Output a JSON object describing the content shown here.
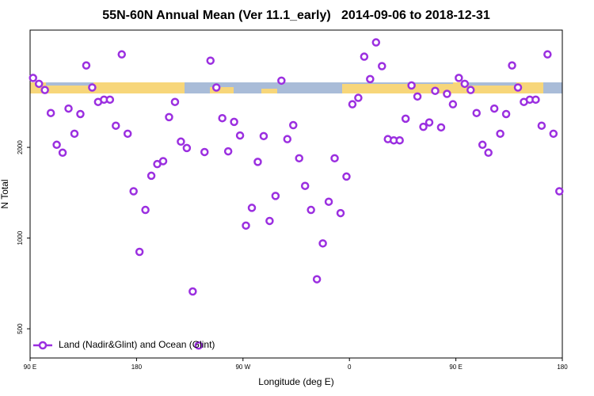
{
  "chart_data": {
    "type": "scatter",
    "title": "55N-60N Annual Mean (Ver 11.1_early)   2014-09-06 to 2018-12-31",
    "xlabel": "Longitude (deg E)",
    "ylabel": "N Total",
    "xlim": [
      90,
      540
    ],
    "ylim": [
      400,
      4900
    ],
    "ylog": true,
    "xticks": [
      {
        "value": 90,
        "label": "90 E"
      },
      180,
      {
        "value": 270,
        "label": "90 W"
      },
      {
        "value": 360,
        "label": "0"
      },
      {
        "value": 450,
        "label": "90 E"
      },
      {
        "value": 540,
        "label": "180"
      }
    ],
    "yticks": [
      500,
      1000,
      2000
    ],
    "legend": "bottom-left",
    "series": [
      {
        "name": "Land (Nadir&Glint) and Ocean (Glint)",
        "color": "#9b2fe0",
        "x": [
          92.5,
          97.5,
          102.5,
          107.5,
          112.5,
          117.5,
          122.5,
          127.5,
          132.5,
          137.5,
          142.5,
          147.5,
          152.5,
          157.5,
          162.5,
          167.5,
          172.5,
          177.5,
          182.5,
          187.5,
          192.5,
          197.5,
          202.5,
          207.5,
          212.5,
          217.5,
          222.5,
          227.5,
          232.5,
          237.5,
          242.5,
          247.5,
          252.5,
          257.5,
          262.5,
          267.5,
          272.5,
          277.5,
          282.5,
          287.5,
          292.5,
          297.5,
          302.5,
          307.5,
          312.5,
          317.5,
          322.5,
          327.5,
          332.5,
          337.5,
          342.5,
          347.5,
          352.5,
          357.5,
          362.5,
          367.5,
          372.5,
          377.5,
          382.5,
          387.5,
          392.5,
          397.5,
          402.5,
          407.5,
          412.5,
          417.5,
          422.5,
          427.5,
          432.5,
          437.5,
          442.5,
          447.5,
          452.5,
          457.5,
          462.5,
          467.5,
          472.5,
          477.5,
          482.5,
          487.5,
          492.5,
          497.5,
          502.5,
          507.5,
          512.5,
          517.5,
          522.5,
          527.5,
          532.5,
          537.5
        ],
        "values": [
          3400,
          3250,
          3100,
          2600,
          2040,
          1920,
          2690,
          2220,
          2580,
          3740,
          3160,
          2830,
          2880,
          2880,
          2360,
          4070,
          2220,
          1430,
          900,
          1240,
          1610,
          1760,
          1800,
          2520,
          2830,
          2090,
          1990,
          665,
          440,
          1930,
          3880,
          3160,
          2500,
          1940,
          2430,
          2190,
          1100,
          1260,
          1790,
          2180,
          1140,
          1380,
          3330,
          2130,
          2370,
          1840,
          1490,
          1240,
          730,
          960,
          1320,
          1840,
          1210,
          1600,
          2780,
          2920,
          4000,
          3370,
          4460,
          3720,
          2130,
          2110,
          2110,
          2490,
          3210,
          2950,
          2340,
          2420,
          3080,
          2330,
          3010,
          2780,
          3400,
          3250,
          3100,
          2600,
          2040,
          1920,
          2690,
          2220,
          2580,
          3740,
          3160,
          2830,
          2880,
          2880,
          2360,
          4070,
          2220,
          1430
        ]
      }
    ]
  }
}
